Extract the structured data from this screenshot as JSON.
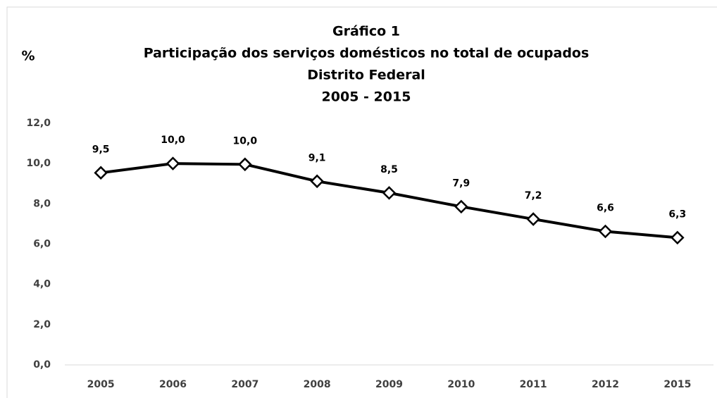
{
  "chart_data": {
    "type": "line",
    "title": [
      "Gráfico 1",
      "Participação dos serviços domésticos no total de ocupados",
      "Distrito Federal",
      "2005 - 2015"
    ],
    "y_label": "%",
    "categories": [
      "2005",
      "2006",
      "2007",
      "2008",
      "2009",
      "2010",
      "2011",
      "2012",
      "2015"
    ],
    "series": [
      {
        "color": "#000000",
        "values": [
          9.54,
          10.0,
          9.96,
          9.12,
          8.54,
          7.86,
          7.24,
          6.63,
          6.32
        ],
        "value_labels": [
          "9,5",
          "10,0",
          "10,0",
          "9,1",
          "8,5",
          "7,9",
          "7,2",
          "6,6",
          "6,3"
        ]
      }
    ],
    "ylim": [
      0,
      12
    ],
    "yticks": [
      {
        "value": 0,
        "label": "0,0"
      },
      {
        "value": 2,
        "label": "2,0"
      },
      {
        "value": 4,
        "label": "4,0"
      },
      {
        "value": 6,
        "label": "6,0"
      },
      {
        "value": 8,
        "label": "8,0"
      },
      {
        "value": 10,
        "label": "10,0"
      },
      {
        "value": 12,
        "label": "12,0"
      }
    ],
    "grid": false
  }
}
